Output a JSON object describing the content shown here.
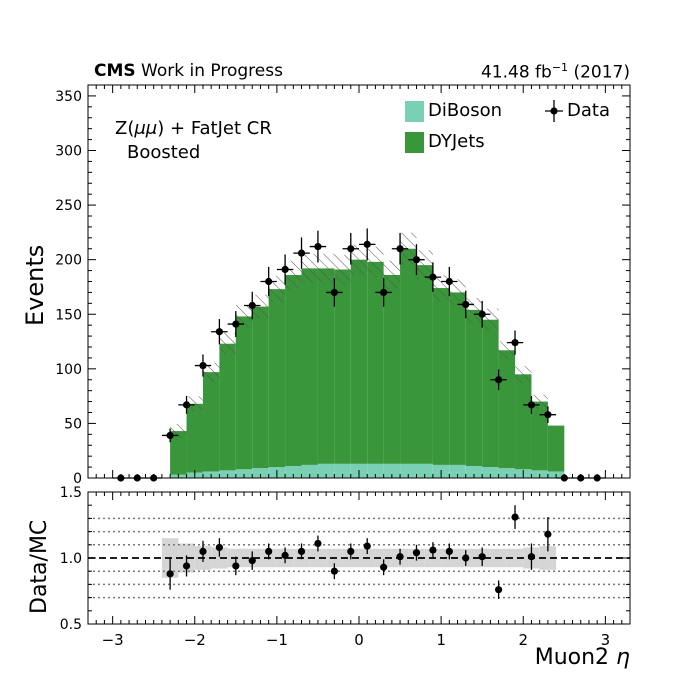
{
  "header": {
    "experiment": "CMS",
    "status": "Work in Progress",
    "lumi_value": "41.48 fb",
    "lumi_exp": "−1",
    "lumi_year": "(2017)"
  },
  "region": {
    "line1_prefix": "Z(",
    "line1_mu": "μμ",
    "line1_suffix": ") + FatJet CR",
    "line2": "Boosted"
  },
  "chart_data": [
    {
      "type": "bar",
      "stacked": true,
      "histogram": true,
      "xlabel": "Muon2 η",
      "ylabel": "Events",
      "xlim": [
        -3.3,
        3.3
      ],
      "ylim": [
        0,
        360
      ],
      "bin_edges": [
        -2.5,
        -2.3,
        -2.1,
        -1.9,
        -1.7,
        -1.5,
        -1.3,
        -1.1,
        -0.9,
        -0.7,
        -0.5,
        -0.3,
        -0.1,
        0.1,
        0.3,
        0.5,
        0.7,
        0.9,
        1.1,
        1.3,
        1.5,
        1.7,
        1.9,
        2.1,
        2.3,
        2.5
      ],
      "series": [
        {
          "name": "DiBoson",
          "color": "#7ad0b5",
          "values": [
            0,
            3,
            5,
            6,
            7,
            8,
            9,
            10,
            11,
            12,
            13,
            13,
            13,
            13,
            13,
            13,
            13,
            12,
            12,
            11,
            10,
            9,
            8,
            7,
            6
          ]
        },
        {
          "name": "DYJets",
          "color": "#3a963a",
          "values": [
            0,
            40,
            63,
            91,
            116,
            140,
            148,
            163,
            175,
            180,
            179,
            178,
            187,
            185,
            173,
            197,
            182,
            162,
            158,
            143,
            135,
            108,
            87,
            63,
            42
          ]
        }
      ],
      "uncertainty_hatch": {
        "relative": [
          0,
          0.15,
          0.1,
          0.09,
          0.08,
          0.07,
          0.07,
          0.07,
          0.07,
          0.07,
          0.07,
          0.07,
          0.07,
          0.07,
          0.07,
          0.07,
          0.07,
          0.07,
          0.07,
          0.07,
          0.07,
          0.07,
          0.08,
          0.09,
          0.0
        ]
      },
      "data": {
        "name": "Data",
        "x": [
          -2.9,
          -2.7,
          -2.5,
          -2.3,
          -2.1,
          -1.9,
          -1.7,
          -1.5,
          -1.3,
          -1.1,
          -0.9,
          -0.7,
          -0.5,
          -0.3,
          -0.1,
          0.1,
          0.3,
          0.5,
          0.7,
          0.9,
          1.1,
          1.3,
          1.5,
          1.7,
          1.9,
          2.1,
          2.3,
          2.5,
          2.7,
          2.9
        ],
        "y": [
          0,
          0,
          0,
          39,
          67,
          103,
          134,
          141,
          158,
          180,
          191,
          206,
          212,
          170,
          210,
          214,
          170,
          210,
          200,
          184,
          180,
          159,
          150,
          90,
          124,
          67,
          58,
          0,
          0,
          0
        ]
      },
      "legend": [
        {
          "label": "DiBoson"
        },
        {
          "label": "DYJets"
        },
        {
          "label": "Data"
        }
      ],
      "legend_position": "top-right",
      "yticks": [
        "0",
        "50",
        "100",
        "150",
        "200",
        "250",
        "300",
        "350"
      ],
      "xticks": [
        "−3",
        "−2",
        "−1",
        "0",
        "1",
        "2",
        "3"
      ]
    },
    {
      "type": "scatter",
      "xlabel": "Muon2 η",
      "ylabel": "Data/MC",
      "xlim": [
        -3.3,
        3.3
      ],
      "ylim": [
        0.5,
        1.5
      ],
      "reference_line": 1.0,
      "dotted_lines": [
        0.7,
        0.8,
        0.9,
        1.1,
        1.2,
        1.3
      ],
      "band_low": [
        0.85,
        0.89,
        0.91,
        0.92,
        0.93,
        0.93,
        0.93,
        0.93,
        0.93,
        0.93,
        0.93,
        0.93,
        0.93,
        0.93,
        0.93,
        0.93,
        0.93,
        0.93,
        0.93,
        0.93,
        0.93,
        0.93,
        0.92,
        0.91
      ],
      "band_high": [
        1.15,
        1.11,
        1.09,
        1.08,
        1.07,
        1.07,
        1.07,
        1.07,
        1.07,
        1.07,
        1.07,
        1.07,
        1.07,
        1.07,
        1.07,
        1.07,
        1.07,
        1.07,
        1.07,
        1.07,
        1.07,
        1.07,
        1.08,
        1.09
      ],
      "band_bins": [
        -2.4,
        -2.2,
        -2.0,
        -1.8,
        -1.6,
        -1.4,
        -1.2,
        -1.0,
        -0.8,
        -0.6,
        -0.4,
        -0.2,
        0.0,
        0.2,
        0.4,
        0.6,
        0.8,
        1.0,
        1.2,
        1.4,
        1.6,
        1.8,
        2.0,
        2.2,
        2.4
      ],
      "x": [
        -2.3,
        -2.1,
        -1.9,
        -1.7,
        -1.5,
        -1.3,
        -1.1,
        -0.9,
        -0.7,
        -0.5,
        -0.3,
        -0.1,
        0.1,
        0.3,
        0.5,
        0.7,
        0.9,
        1.1,
        1.3,
        1.5,
        1.7,
        1.9,
        2.1,
        2.3
      ],
      "y": [
        0.88,
        0.94,
        1.05,
        1.08,
        0.94,
        0.98,
        1.05,
        1.02,
        1.05,
        1.11,
        0.9,
        1.05,
        1.09,
        0.93,
        1.01,
        1.04,
        1.06,
        1.05,
        1.0,
        1.01,
        0.76,
        1.31,
        1.01,
        1.18
      ],
      "yerr": [
        0.12,
        0.08,
        0.08,
        0.07,
        0.07,
        0.07,
        0.06,
        0.06,
        0.06,
        0.06,
        0.06,
        0.06,
        0.06,
        0.06,
        0.06,
        0.06,
        0.06,
        0.06,
        0.06,
        0.07,
        0.07,
        0.09,
        0.1,
        0.13
      ],
      "yticks": [
        "0.5",
        "1.0",
        "1.5"
      ],
      "xticks": [
        "−3",
        "−2",
        "−1",
        "0",
        "1",
        "2",
        "3"
      ]
    }
  ]
}
